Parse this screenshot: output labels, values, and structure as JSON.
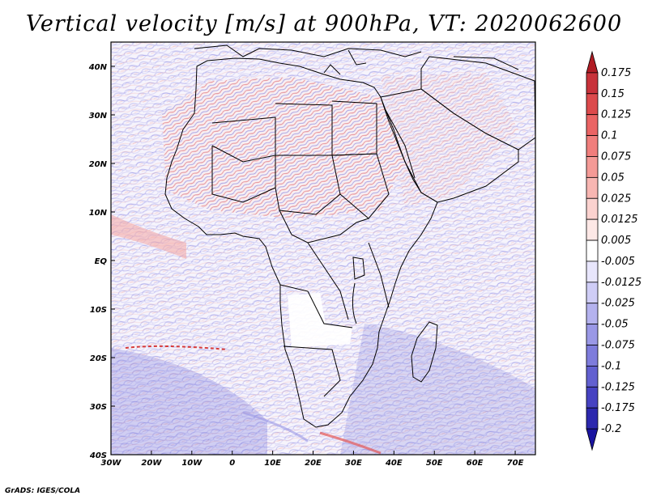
{
  "title": "Vertical velocity [m/s] at 900hPa, VT: 2020062600",
  "footer": "GrADS: IGES/COLA",
  "map": {
    "lon_range": [
      -30,
      75
    ],
    "lat_range": [
      -40,
      45
    ],
    "lon_ticks": [
      "30W",
      "20W",
      "10W",
      "0",
      "10E",
      "20E",
      "30E",
      "40E",
      "50E",
      "60E",
      "70E"
    ],
    "lat_ticks": [
      "40S",
      "30S",
      "20S",
      "10S",
      "EQ",
      "10N",
      "20N",
      "30N",
      "40N"
    ]
  },
  "colorbar": {
    "labels": [
      "0.175",
      "0.15",
      "0.125",
      "0.1",
      "0.075",
      "0.05",
      "0.025",
      "0.0125",
      "0.005",
      "-0.005",
      "-0.0125",
      "-0.025",
      "-0.05",
      "-0.075",
      "-0.1",
      "-0.125",
      "-0.175",
      "-0.2"
    ],
    "colors": [
      "#b01c24",
      "#c8323a",
      "#dc4a4c",
      "#ea6464",
      "#f07e7c",
      "#f49a96",
      "#f8b6b2",
      "#fbd2cf",
      "#fde8e6",
      "#ffffff",
      "#e8e6fc",
      "#cfcdf6",
      "#b4b2ee",
      "#9a98e6",
      "#7e7cdc",
      "#6260d0",
      "#4642c2",
      "#2c28ae",
      "#1a14a0"
    ]
  }
}
